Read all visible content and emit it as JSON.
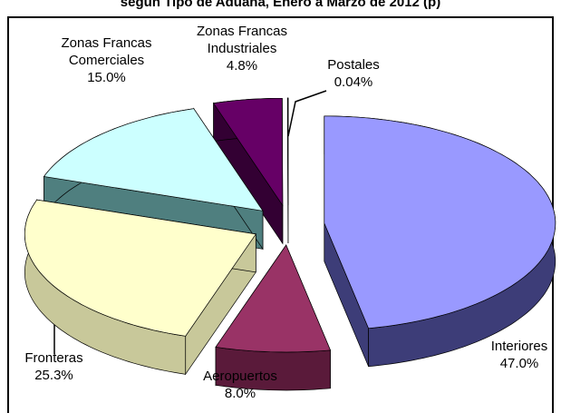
{
  "chart_data": {
    "type": "pie3d",
    "title": "según Tipo de Aduana, Enero a Marzo de 2012 (p)",
    "categories": [
      "Interiores",
      "Aeropuertos",
      "Fronteras",
      "Zonas Francas Comerciales",
      "Zonas Francas Industriales",
      "Postales"
    ],
    "values": [
      47.0,
      8.0,
      25.3,
      15.0,
      4.8,
      0.04
    ],
    "value_labels": [
      "47.0%",
      "8.0%",
      "25.3%",
      "15.0%",
      "4.8%",
      "0.04%"
    ],
    "colors": [
      "#9999ff",
      "#993366",
      "#ffffcc",
      "#ccffff",
      "#660066",
      "#ffffff"
    ],
    "side_colors": [
      "#3d3d78",
      "#5a1a3a",
      "#c8c89a",
      "#4f7f7f",
      "#330033",
      "#999999"
    ]
  }
}
